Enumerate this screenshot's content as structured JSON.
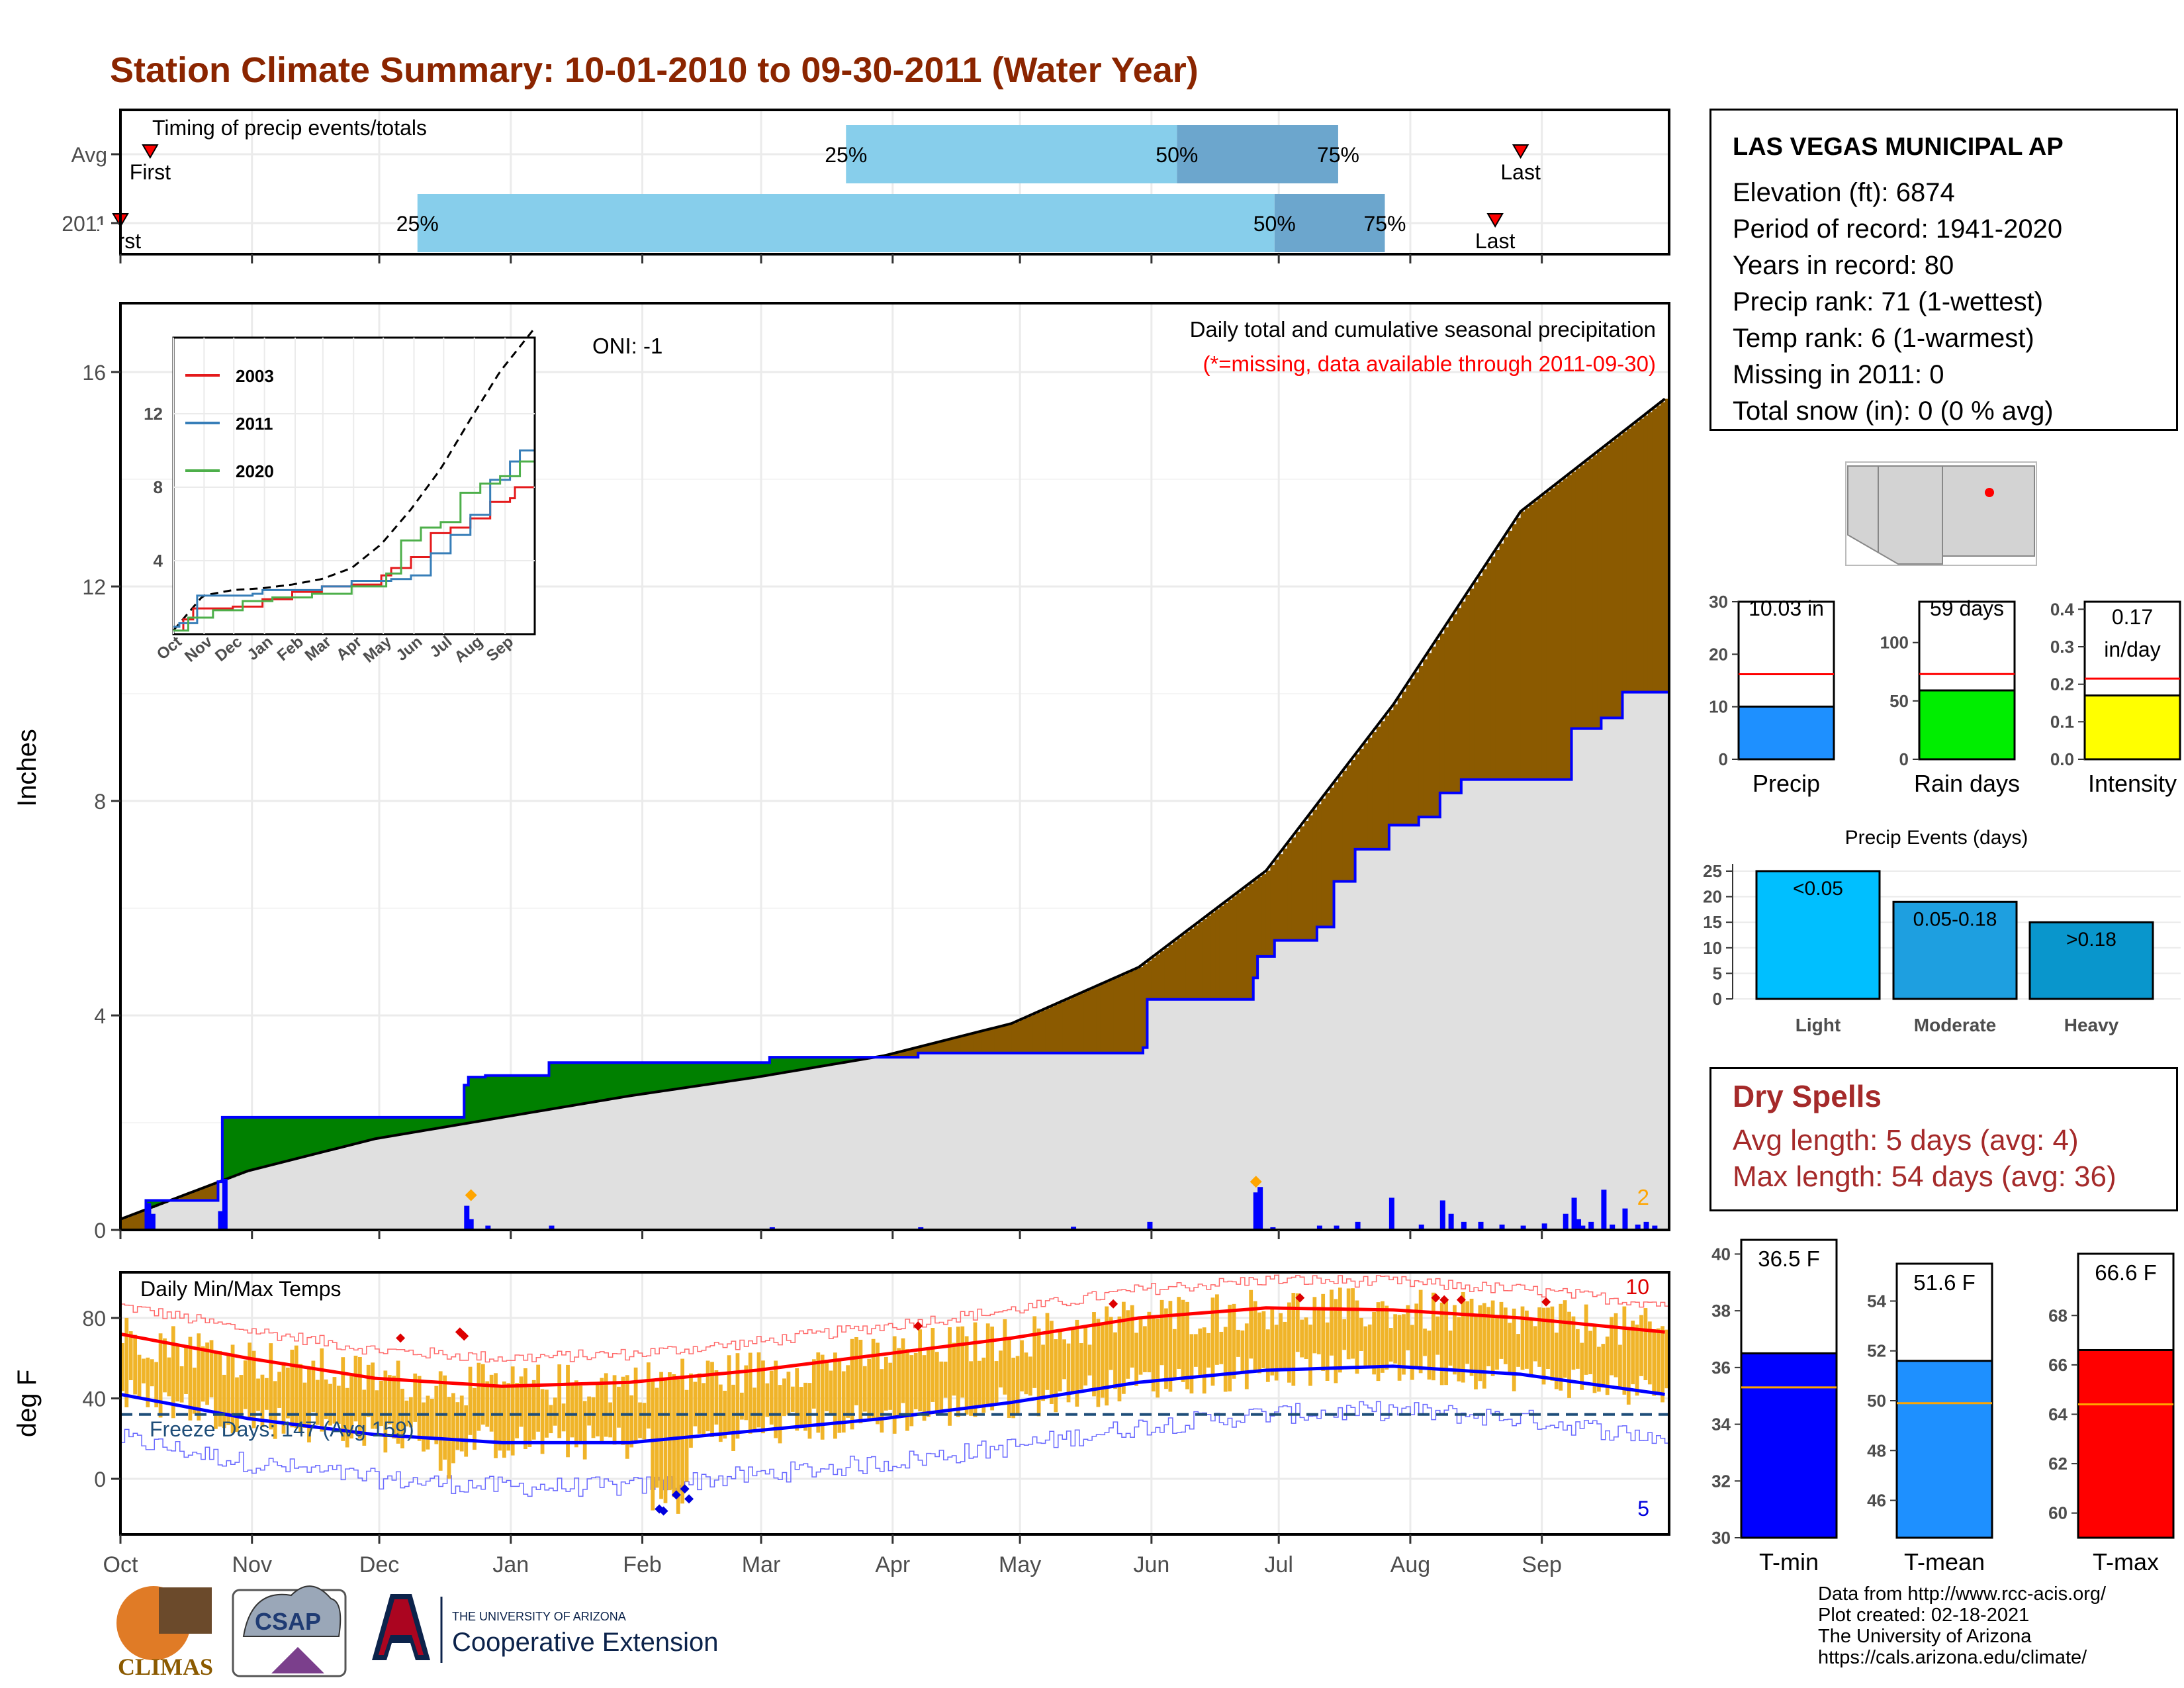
{
  "page": {
    "title": "Station Climate Summary: 10-01-2010 to 09-30-2011 (Water Year)"
  },
  "colors": {
    "title": "#8b2500",
    "green_fill": "#008000",
    "brown_fill": "#8b5a00",
    "grey_fill": "#e0e0e0",
    "quartile_light": "#87ceeb",
    "quartile_dark": "#6ca6cd",
    "bar_orange": "#f0b429",
    "tmax_avg": "#ff0000",
    "tmin_avg": "#0000ff"
  },
  "timing": {
    "label": "Timing of precip events/totals",
    "rows": [
      {
        "label": "Avg",
        "first_label": "First",
        "last_label": "Last",
        "q25": "25%",
        "q50": "50%",
        "q75": "75%",
        "first_day": 7,
        "q25_day": 171,
        "q50_day": 249,
        "q75_day": 287,
        "last_day": 330
      },
      {
        "label": "2011",
        "first_label": "First",
        "last_label": "Last",
        "q25": "25%",
        "q50": "50%",
        "q75": "75%",
        "first_day": 0,
        "q25_day": 70,
        "q50_day": 272,
        "q75_day": 298,
        "last_day": 324
      }
    ]
  },
  "precip_panel": {
    "ylabel": "Inches",
    "yticks": [
      "0",
      "4",
      "8",
      "12",
      "16"
    ],
    "caption": "Daily total and cumulative seasonal precipitation",
    "missing_note": "(*=missing, data available through 2011-09-30)",
    "oni": "ONI: -1",
    "corner_count": "2"
  },
  "inset": {
    "yticks": [
      "4",
      "8",
      "12"
    ],
    "xticks": [
      "Oct",
      "Nov",
      "Dec",
      "Jan",
      "Feb",
      "Mar",
      "Apr",
      "May",
      "Jun",
      "Jul",
      "Aug",
      "Sep"
    ],
    "legend": [
      {
        "name": "2003",
        "color": "#e41a1c"
      },
      {
        "name": "2011",
        "color": "#377eb8"
      },
      {
        "name": "2020",
        "color": "#4daf4a"
      }
    ]
  },
  "temp_panel": {
    "ylabel": "deg F",
    "label": "Daily Min/Max Temps",
    "yticks": [
      "0",
      "40",
      "80"
    ],
    "freeze": "Freeze Days: 147 (Avg 159)",
    "count_high": "10",
    "count_low": "5"
  },
  "months": [
    "Oct",
    "Nov",
    "Dec",
    "Jan",
    "Feb",
    "Mar",
    "Apr",
    "May",
    "Jun",
    "Jul",
    "Aug",
    "Sep"
  ],
  "station": {
    "name": "LAS VEGAS MUNICIPAL AP",
    "elevation": "Elevation (ft): 6874",
    "period": "Period of record: 1941-2020",
    "years": "Years in record: 80",
    "precip_rank": "Precip rank: 71 (1-wettest)",
    "temp_rank": "Temp rank: 6 (1-warmest)",
    "missing": "Missing in 2011: 0",
    "snow": "Total snow (in): 0 (0 % avg)"
  },
  "mini_bars": [
    {
      "label": "Precip",
      "value_text": "10.03 in",
      "value": 10.03,
      "avg": 16.2,
      "max": 30,
      "ticks": [
        "0",
        "10",
        "20",
        "30"
      ],
      "color": "#1e90ff"
    },
    {
      "label": "Rain days",
      "value_text": "59 days",
      "value": 59,
      "avg": 73,
      "max": 135,
      "ticks": [
        "0",
        "50",
        "100"
      ],
      "color": "#00ee00"
    },
    {
      "label": "Intensity",
      "value_text": "0.17 in/day",
      "value_text_1": "0.17",
      "value_text_2": "in/day",
      "value": 0.17,
      "avg": 0.215,
      "max": 0.42,
      "ticks": [
        "0.0",
        "0.1",
        "0.2",
        "0.3",
        "0.4"
      ],
      "color": "#ffff00"
    }
  ],
  "events": {
    "title": "Precip Events (days)",
    "yticks": [
      "0",
      "5",
      "10",
      "15",
      "20",
      "25"
    ],
    "bars": [
      {
        "category": "Light",
        "label": "<0.05",
        "value": 25,
        "color": "#00bfff"
      },
      {
        "category": "Moderate",
        "label": "0.05-0.18",
        "value": 19,
        "color": "#1e9fe0"
      },
      {
        "category": "Heavy",
        "label": ">0.18",
        "value": 15,
        "color": "#0996cc"
      }
    ]
  },
  "dry_spells": {
    "title": "Dry Spells",
    "avg": "Avg length: 5 days (avg: 4)",
    "max": "Max length: 54 days (avg: 36)"
  },
  "temp_bars": [
    {
      "label": "T-min",
      "value_text": "36.5 F",
      "value": 36.5,
      "avg": 35.3,
      "min": 30,
      "max": 40.5,
      "ticks": [
        "30",
        "32",
        "34",
        "36",
        "38",
        "40"
      ],
      "color": "#0000ff"
    },
    {
      "label": "T-mean",
      "value_text": "51.6 F",
      "value": 51.6,
      "avg": 49.9,
      "min": 44.5,
      "max": 55.5,
      "ticks": [
        "46",
        "48",
        "50",
        "52",
        "54"
      ],
      "color": "#1e90ff"
    },
    {
      "label": "T-max",
      "value_text": "66.6 F",
      "value": 66.6,
      "avg": 64.4,
      "min": 59,
      "max": 70.5,
      "ticks": [
        "60",
        "62",
        "64",
        "66",
        "68"
      ],
      "color": "#ff0000"
    }
  ],
  "credits": {
    "line1": "Data from http://www.rcc-acis.org/",
    "line2": "Plot created: 02-18-2021",
    "line3": "The University of Arizona",
    "line4": "https://cals.arizona.edu/climate/"
  },
  "logos": {
    "climas": "CLIMAS",
    "csap": "CSAP",
    "ua_small": "THE UNIVERSITY OF ARIZONA",
    "ua_big": "Cooperative Extension"
  },
  "chart_data": [
    {
      "type": "area",
      "title": "Daily total and cumulative seasonal precipitation",
      "ylabel": "Inches",
      "ylim": [
        0,
        17
      ],
      "series": [
        {
          "name": "2011",
          "x": [
            0,
            6,
            7,
            22,
            23,
            24,
            40,
            41,
            42,
            80,
            81,
            82,
            85,
            86,
            100,
            101,
            152,
            153,
            187,
            188,
            223,
            224,
            241,
            242,
            266,
            267,
            268,
            271,
            272,
            281,
            282,
            285,
            286,
            290,
            291,
            298,
            299,
            305,
            306,
            310,
            311,
            315,
            316,
            341,
            342,
            348,
            349,
            353,
            354,
            364
          ],
          "y": [
            0,
            0.55,
            0.55,
            0.55,
            0.9,
            2.1,
            2.1,
            2.1,
            2.1,
            2.1,
            2.7,
            2.85,
            2.85,
            2.88,
            2.88,
            3.12,
            3.12,
            3.22,
            3.22,
            3.3,
            3.3,
            3.3,
            3.4,
            4.3,
            4.3,
            4.7,
            5.1,
            5.1,
            5.4,
            5.4,
            5.65,
            5.65,
            6.5,
            6.5,
            7.1,
            7.1,
            7.55,
            7.55,
            7.7,
            7.7,
            8.15,
            8.15,
            8.4,
            8.4,
            9.35,
            9.35,
            9.55,
            9.55,
            10.03,
            10.03
          ]
        },
        {
          "name": "Avg",
          "x": [
            0,
            30,
            60,
            90,
            120,
            150,
            180,
            210,
            240,
            270,
            300,
            330,
            364
          ],
          "y": [
            0.2,
            1.1,
            1.7,
            2.1,
            2.5,
            2.85,
            3.25,
            3.85,
            4.9,
            6.7,
            9.8,
            13.4,
            15.5
          ]
        }
      ]
    },
    {
      "type": "line",
      "title": "Daily Min/Max Temps",
      "ylabel": "deg F",
      "ylim": [
        -22,
        92
      ],
      "series": [
        {
          "name": "Avg max",
          "x": [
            0,
            30,
            60,
            90,
            120,
            150,
            180,
            210,
            240,
            270,
            300,
            330,
            364
          ],
          "y": [
            72,
            60,
            50,
            46,
            48,
            54,
            62,
            70,
            80,
            85,
            84,
            80,
            73
          ]
        },
        {
          "name": "Avg min",
          "x": [
            0,
            30,
            60,
            90,
            120,
            150,
            180,
            210,
            240,
            270,
            300,
            330,
            364
          ],
          "y": [
            42,
            30,
            22,
            18,
            18,
            24,
            30,
            38,
            48,
            54,
            56,
            52,
            42
          ]
        }
      ],
      "freeze_line": 32
    }
  ]
}
